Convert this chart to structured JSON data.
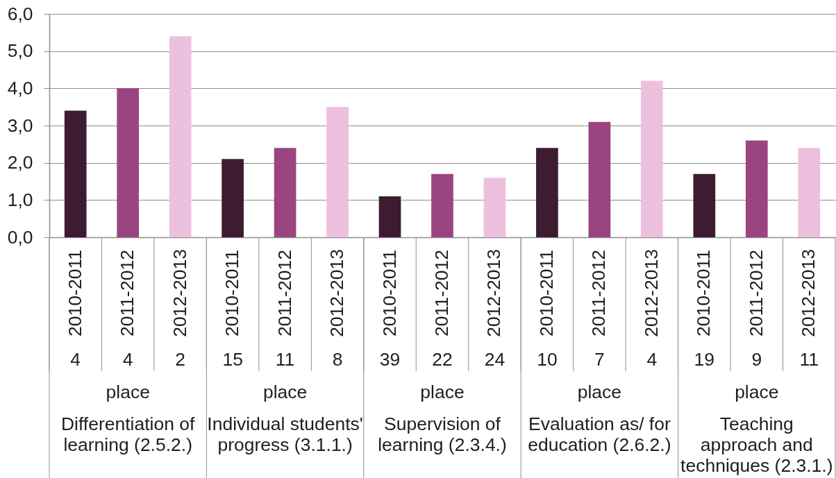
{
  "chart_data": {
    "type": "bar",
    "categories": [
      "2010-2011",
      "2011-2012",
      "2012-2013",
      "2010-2011",
      "2011-2012",
      "2012-2013",
      "2010-2011",
      "2011-2012",
      "2012-2013",
      "2010-2011",
      "2011-2012",
      "2012-2013",
      "2010-2011",
      "2011-2012",
      "2012-2013"
    ],
    "values": [
      3.4,
      4.0,
      5.4,
      2.1,
      2.4,
      3.5,
      1.1,
      1.7,
      1.6,
      2.4,
      3.1,
      4.2,
      1.7,
      2.6,
      2.4
    ],
    "colors": [
      "#3d1b31",
      "#9a4580",
      "#edc1de",
      "#3d1b31",
      "#9a4580",
      "#edc1de",
      "#3d1b31",
      "#9a4580",
      "#edc1de",
      "#3d1b31",
      "#9a4580",
      "#edc1de",
      "#3d1b31",
      "#9a4580",
      "#edc1de"
    ],
    "ylim": [
      0,
      6
    ],
    "yticks": [
      {
        "value": 0,
        "label": "0,0"
      },
      {
        "value": 1,
        "label": "1,0"
      },
      {
        "value": 2,
        "label": "2,0"
      },
      {
        "value": 3,
        "label": "3,0"
      },
      {
        "value": 4,
        "label": "4,0"
      },
      {
        "value": 5,
        "label": "5,0"
      },
      {
        "value": 6,
        "label": "6,0"
      }
    ],
    "grid": "y",
    "annotations": [
      "4",
      "4",
      "2",
      "15",
      "11",
      "8",
      "39",
      "22",
      "24",
      "10",
      "7",
      "4",
      "19",
      "9",
      "11",
      "place",
      "place",
      "place",
      "place",
      "place",
      "Differentiation of learning (2.5.2.)",
      "Individual students' progress (3.1.1.)",
      "Supervision of learning (2.3.4.)",
      "Evaluation as/ for education (2.6.2.)",
      "Teaching approach and techniques (2.3.1.)"
    ]
  }
}
